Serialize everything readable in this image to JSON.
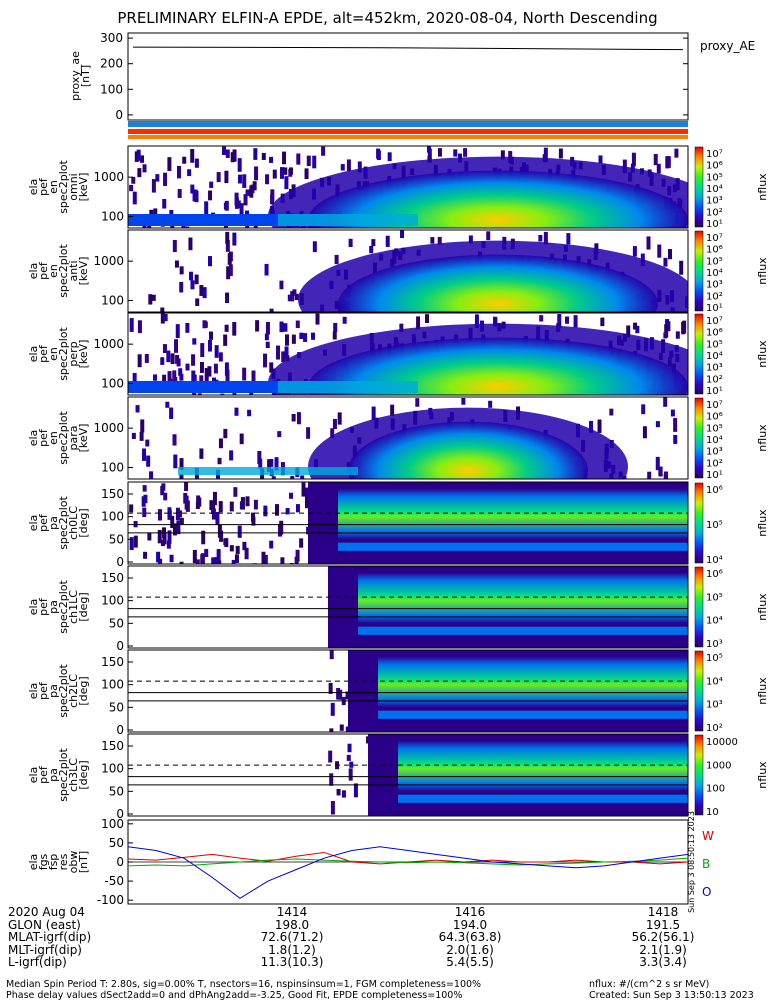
{
  "title": "PRELIMINARY ELFIN-A EPDE, alt=452km, 2020-08-04, North Descending",
  "proxy_ae_panel": {
    "ylabel": [
      "proxy_ae",
      "[nT]"
    ],
    "yticks": [
      "300",
      "200",
      "100",
      "0"
    ],
    "legend": "proxy_AE"
  },
  "spectrogram_panels": [
    {
      "ylabel": [
        "ela",
        "pef",
        "en",
        "spec2plot",
        "omni",
        "[keV]"
      ],
      "yticks": [
        "1000",
        "100"
      ],
      "cb_ticks": [
        "10⁷",
        "10⁶",
        "10⁵",
        "10⁴",
        "10³",
        "10²",
        "10¹"
      ],
      "cb_label": "nflux"
    },
    {
      "ylabel": [
        "ela",
        "pef",
        "en",
        "spec2plot",
        "anti",
        "[keV]"
      ],
      "yticks": [
        "1000",
        "100"
      ],
      "cb_ticks": [
        "10⁷",
        "10⁶",
        "10⁵",
        "10⁴",
        "10³",
        "10²",
        "10¹"
      ],
      "cb_label": "nflux"
    },
    {
      "ylabel": [
        "ela",
        "pef",
        "en",
        "spec2plot",
        "perp",
        "[keV]"
      ],
      "yticks": [
        "1000",
        "100"
      ],
      "cb_ticks": [
        "10⁷",
        "10⁶",
        "10⁵",
        "10⁴",
        "10³",
        "10²",
        "10¹"
      ],
      "cb_label": "nflux"
    },
    {
      "ylabel": [
        "ela",
        "pef",
        "en",
        "spec2plot",
        "para",
        "[keV]"
      ],
      "yticks": [
        "1000",
        "100"
      ],
      "cb_ticks": [
        "10⁷",
        "10⁶",
        "10⁵",
        "10⁴",
        "10³",
        "10²",
        "10¹"
      ],
      "cb_label": "nflux"
    },
    {
      "ylabel": [
        "ela",
        "pef",
        "pa",
        "spec2plot",
        "ch0LC",
        "[deg]"
      ],
      "yticks": [
        "150",
        "100",
        "50",
        "0"
      ],
      "cb_ticks": [
        "10⁶",
        "10⁵",
        "10⁴"
      ],
      "cb_label": "nflux"
    },
    {
      "ylabel": [
        "ela",
        "pef",
        "pa",
        "spec2plot",
        "ch1LC",
        "[deg]"
      ],
      "yticks": [
        "150",
        "100",
        "50",
        "0"
      ],
      "cb_ticks": [
        "10⁶",
        "10⁵",
        "10⁴",
        "10³"
      ],
      "cb_label": "nflux"
    },
    {
      "ylabel": [
        "ela",
        "pef",
        "pa",
        "spec2plot",
        "ch2LC",
        "[deg]"
      ],
      "yticks": [
        "150",
        "100",
        "50",
        "0"
      ],
      "cb_ticks": [
        "10⁵",
        "10⁴",
        "10³",
        "10²"
      ],
      "cb_label": "nflux"
    },
    {
      "ylabel": [
        "ela",
        "pef",
        "pa",
        "spec2plot",
        "ch3LC",
        "[deg]"
      ],
      "yticks": [
        "150",
        "100",
        "50",
        "0"
      ],
      "cb_ticks": [
        "10000",
        "1000",
        "100",
        "10"
      ],
      "cb_label": "nflux"
    }
  ],
  "field_panel": {
    "ylabel": [
      "ela",
      "fgs",
      "fsp",
      "res",
      "obw",
      "[nT]"
    ],
    "yticks": [
      "100",
      "50",
      "0",
      "-50",
      "-100"
    ],
    "legend": [
      {
        "label": "W",
        "color": "#dd0000"
      },
      {
        "label": "B",
        "color": "#00aa00"
      },
      {
        "label": "O",
        "color": "#0000dd"
      }
    ],
    "side_text": "Sun Sep  3 08:50:13 2023"
  },
  "bottom_table": {
    "rows": [
      {
        "label": "2020 Aug 04",
        "values": [
          "1414",
          "1416",
          "1418"
        ]
      },
      {
        "label": "GLON (east)",
        "values": [
          "198.0",
          "194.0",
          "191.5"
        ]
      },
      {
        "label": "MLAT-igrf(dip)",
        "values": [
          "72.6(71.2)",
          "64.3(63.8)",
          "56.2(56.1)"
        ]
      },
      {
        "label": "MLT-igrf(dip)",
        "values": [
          "1.8(1.2)",
          "2.0(1.6)",
          "2.1(1.9)"
        ]
      },
      {
        "label": "L-igrf(dip)",
        "values": [
          "11.3(10.3)",
          "5.4(5.5)",
          "3.3(3.4)"
        ]
      }
    ]
  },
  "footer": {
    "left1": "Median Spin Period T: 2.80s, sig=0.00% T, nsectors=16, nspinsinsum=1, FGM completeness=100%",
    "left2": "Phase delay values dSect2add=0 and dPhAng2add=-3.25, Good Fit, EPDE completeness=100%",
    "right1": "nflux: #/(cm^2 s sr MeV)",
    "right2": "Created: Sun Sep  3 13:50:13 2023"
  },
  "colors": {
    "status_bar_blue": "#1e7fd6",
    "status_bar_red": "#ff2a00",
    "status_bar_orange": "#ff8000"
  },
  "chart_data": {
    "type": "heatmap",
    "time_axis_ticks": [
      "1414",
      "1416",
      "1418"
    ],
    "proxy_ae": {
      "x": [
        "1412:30",
        "1415:00",
        "1418:30"
      ],
      "y": [
        265,
        262,
        255
      ],
      "ylim": [
        -20,
        320
      ]
    },
    "field_residuals": {
      "ylim": [
        -110,
        110
      ],
      "series": [
        {
          "name": "W",
          "color": "#dd0000",
          "values": [
            8,
            5,
            12,
            20,
            10,
            2,
            15,
            25,
            0,
            -5,
            0,
            5,
            0,
            5,
            0,
            0,
            5,
            0,
            0,
            -5,
            0
          ]
        },
        {
          "name": "B",
          "color": "#00aa00",
          "values": [
            -10,
            -8,
            -10,
            -5,
            0,
            5,
            8,
            5,
            2,
            0,
            -2,
            0,
            -2,
            -5,
            -8,
            -5,
            -3,
            0,
            2,
            5,
            10
          ]
        },
        {
          "name": "O",
          "color": "#0000dd",
          "values": [
            40,
            30,
            10,
            -40,
            -95,
            -50,
            -20,
            10,
            30,
            40,
            30,
            20,
            10,
            0,
            -5,
            -10,
            -15,
            -10,
            0,
            10,
            20
          ]
        }
      ]
    }
  }
}
